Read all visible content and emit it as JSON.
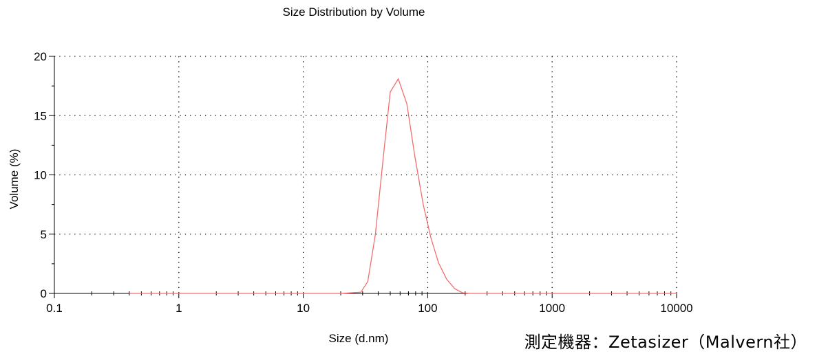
{
  "chart_data": {
    "type": "line",
    "title": "Size Distribution by Volume",
    "xlabel": "Size (d.nm)",
    "ylabel": "Volume (%)",
    "xscale": "log",
    "xlim": [
      0.1,
      10000
    ],
    "ylim": [
      0,
      20
    ],
    "xticks": [
      "0.1",
      "1",
      "10",
      "100",
      "1000",
      "10000"
    ],
    "yticks": [
      "0",
      "5",
      "10",
      "15",
      "20"
    ],
    "grid": true,
    "line_color": "#f26d6d",
    "series": [
      {
        "x": [
          0.4,
          0.6,
          1,
          2,
          5,
          10,
          20,
          29,
          33,
          38,
          44,
          50,
          58,
          68,
          79,
          92,
          106,
          122,
          142,
          165,
          190,
          220,
          300,
          600,
          1000,
          3000,
          10000
        ],
        "y": [
          0,
          0,
          0,
          0,
          0,
          0,
          0,
          0.1,
          1.0,
          5.0,
          11.5,
          17.0,
          18.1,
          16.0,
          11.5,
          7.5,
          4.7,
          2.6,
          1.2,
          0.4,
          0.05,
          0,
          0,
          0,
          0,
          0,
          0
        ]
      }
    ]
  },
  "footnote": "測定機器：Zetasizer（Malvern社）"
}
